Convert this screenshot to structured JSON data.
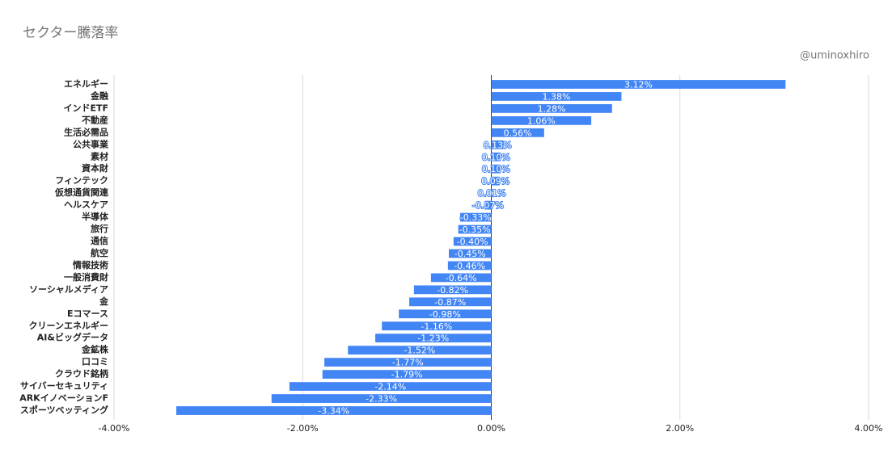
{
  "chart_data": {
    "type": "bar",
    "orientation": "horizontal",
    "title": "セクター騰落率",
    "subtitle": "@uminoxhiro",
    "categories": [
      "エネルギー",
      "金融",
      "インドETF",
      "不動産",
      "生活必需品",
      "公共事業",
      "素材",
      "資本財",
      "フィンテック",
      "仮想通貨関連",
      "ヘルスケア",
      "半導体",
      "旅行",
      "通信",
      "航空",
      "情報技術",
      "一般消費財",
      "ソーシャルメディア",
      "金",
      "Eコマース",
      "クリーンエネルギー",
      "AI&ビッグデータ",
      "金鉱株",
      "口コミ",
      "クラウド銘柄",
      "サイバーセキュリティ",
      "ARKイノベーションF",
      "スポーツベッティング"
    ],
    "values": [
      3.12,
      1.38,
      1.28,
      1.06,
      0.56,
      0.13,
      0.1,
      0.1,
      0.09,
      0.01,
      -0.07,
      -0.33,
      -0.35,
      -0.4,
      -0.45,
      -0.46,
      -0.64,
      -0.82,
      -0.87,
      -0.98,
      -1.16,
      -1.23,
      -1.52,
      -1.77,
      -1.79,
      -2.14,
      -2.33,
      -3.34
    ],
    "value_labels": [
      "3.12%",
      "1.38%",
      "1.28%",
      "1.06%",
      "0.56%",
      "0.13%",
      "0.10%",
      "0.10%",
      "0.09%",
      "0.01%",
      "-0.07%",
      "-0.33%",
      "-0.35%",
      "-0.40%",
      "-0.45%",
      "-0.46%",
      "-0.64%",
      "-0.82%",
      "-0.87%",
      "-0.98%",
      "-1.16%",
      "-1.23%",
      "-1.52%",
      "-1.77%",
      "-1.79%",
      "-2.14%",
      "-2.33%",
      "-3.34%"
    ],
    "color": "#4285f4",
    "xlim": [
      -4,
      4
    ],
    "xticks": [
      {
        "value": -4,
        "label": "-4.00%"
      },
      {
        "value": -2,
        "label": "-2.00%"
      },
      {
        "value": 0,
        "label": "0.00%"
      },
      {
        "value": 2,
        "label": "2.00%"
      },
      {
        "value": 4,
        "label": "4.00%"
      }
    ],
    "grid": true
  }
}
